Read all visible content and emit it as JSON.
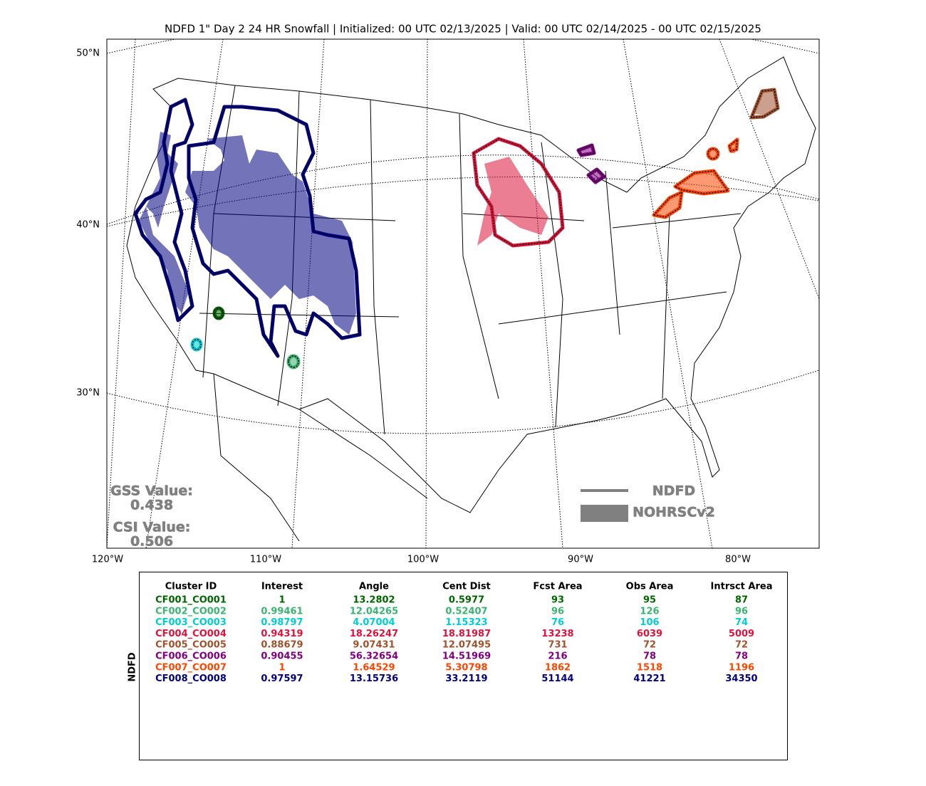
{
  "title": "NDFD 1\" Day 2 24 HR Snowfall | Initialized: 00 UTC 02/13/2025 | Valid: 00 UTC 02/14/2025 - 00 UTC 02/15/2025",
  "map": {
    "lat_labels": [
      "50°N",
      "40°N",
      "30°N"
    ],
    "lon_labels": [
      "120°W",
      "110°W",
      "100°W",
      "90°W",
      "80°W"
    ]
  },
  "scores": {
    "gss_label": "GSS Value:",
    "gss": 0.438,
    "csi_label": "CSI Value:",
    "csi": 0.506
  },
  "legend": {
    "line": "NDFD",
    "fill": "NOHRSCv2",
    "color": "#808080"
  },
  "table": {
    "side_label": "NDFD",
    "columns": [
      "Cluster ID",
      "Interest",
      "Angle",
      "Cent Dist",
      "Fcst Area",
      "Obs Area",
      "Intrsct Area"
    ],
    "rows": [
      {
        "color": "#006400",
        "cells": [
          "CF001_CO001",
          1,
          13.2802,
          0.5977,
          93,
          95,
          87
        ]
      },
      {
        "color": "#3cb371",
        "cells": [
          "CF002_CO002",
          0.99461,
          12.04265,
          0.52407,
          96,
          126,
          96
        ]
      },
      {
        "color": "#00ced1",
        "cells": [
          "CF003_CO003",
          0.98797,
          4.07004,
          1.15323,
          76,
          106,
          74
        ]
      },
      {
        "color": "#dc143c",
        "cells": [
          "CF004_CO004",
          0.94319,
          18.26247,
          18.81987,
          13238,
          6039,
          5009
        ]
      },
      {
        "color": "#a0522d",
        "cells": [
          "CF005_CO005",
          0.88679,
          9.07431,
          12.07495,
          731,
          72,
          72
        ]
      },
      {
        "color": "#800080",
        "cells": [
          "CF006_CO006",
          0.90455,
          56.32654,
          14.51969,
          216,
          78,
          78
        ]
      },
      {
        "color": "#ff4500",
        "cells": [
          "CF007_CO007",
          1,
          1.64529,
          5.30798,
          1862,
          1518,
          1196
        ]
      },
      {
        "color": "#000080",
        "cells": [
          "CF008_CO008",
          0.97597,
          13.15736,
          33.2119,
          51144,
          41221,
          34350
        ]
      }
    ]
  }
}
